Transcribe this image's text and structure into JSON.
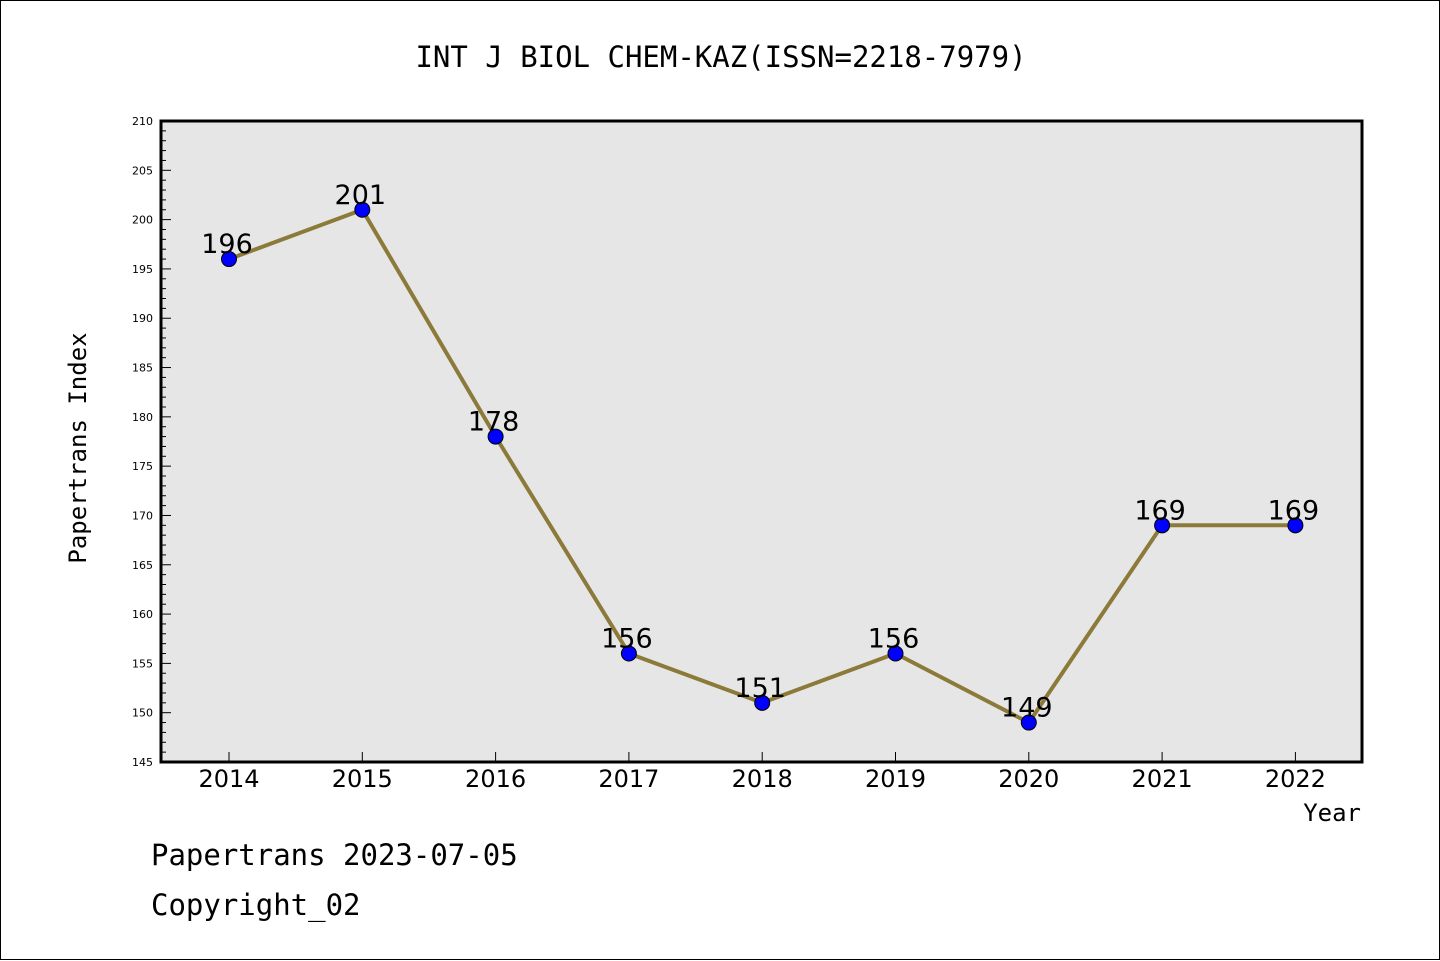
{
  "chart_data": {
    "type": "line",
    "title": "INT J BIOL CHEM-KAZ(ISSN=2218-7979)",
    "xlabel": "Year",
    "ylabel": "Papertrans Index",
    "categories": [
      "2014",
      "2015",
      "2016",
      "2017",
      "2018",
      "2019",
      "2020",
      "2021",
      "2022"
    ],
    "values": [
      196,
      201,
      178,
      156,
      151,
      156,
      149,
      169,
      169
    ],
    "data_labels": [
      "196",
      "201",
      "178",
      "156",
      "151",
      "156",
      "149",
      "169",
      "169"
    ],
    "ylim": [
      145,
      210
    ],
    "y_ticks": [
      "145",
      "150",
      "155",
      "160",
      "165",
      "170",
      "175",
      "180",
      "185",
      "190",
      "195",
      "200",
      "205",
      "210"
    ],
    "grid": false,
    "colors": {
      "line": "#8b7a3a",
      "marker": "#0000ff",
      "plot_background": "#e6e6e6"
    }
  },
  "footer": {
    "line1": "Papertrans 2023-07-05",
    "line2": "Copyright_02"
  }
}
